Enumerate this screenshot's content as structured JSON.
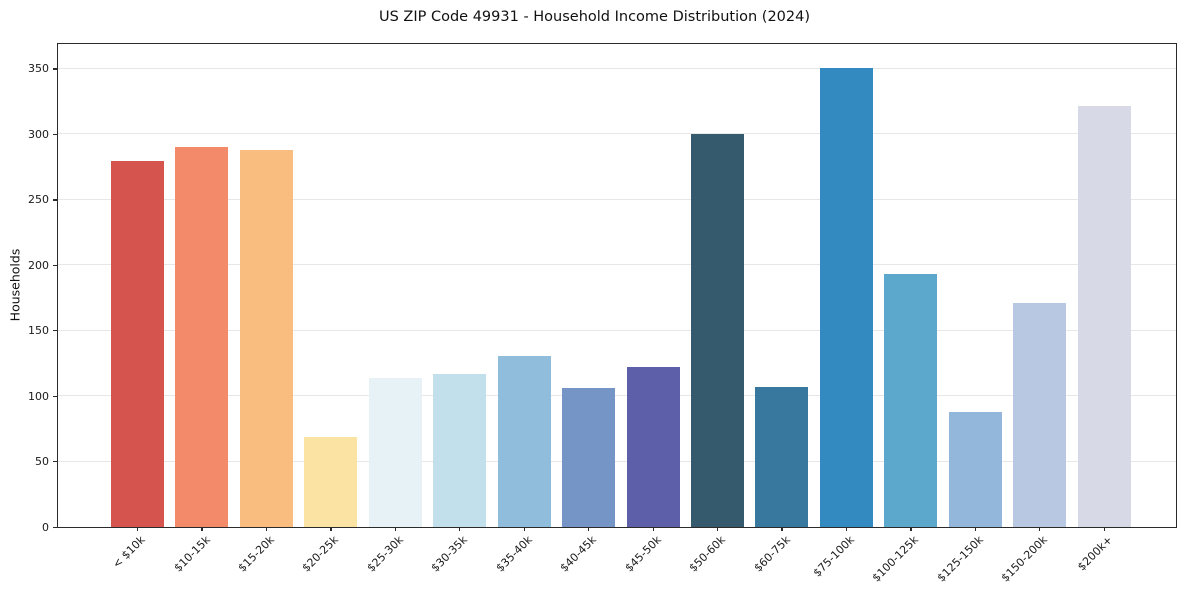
{
  "chart_data": {
    "type": "bar",
    "title": "US ZIP Code 49931 - Household Income Distribution (2024)",
    "xlabel": "",
    "ylabel": "Households",
    "categories": [
      "< $10k",
      "$10-15k",
      "$15-20k",
      "$20-25k",
      "$25-30k",
      "$30-35k",
      "$35-40k",
      "$40-45k",
      "$45-50k",
      "$50-60k",
      "$60-75k",
      "$75-100k",
      "$100-125k",
      "$125-150k",
      "$150-200k",
      "$200k+"
    ],
    "values": [
      280,
      290,
      288,
      69,
      114,
      117,
      131,
      106,
      122,
      300,
      107,
      351,
      193,
      88,
      171,
      322
    ],
    "bar_colors": [
      "#d6544e",
      "#f38a6a",
      "#fabd80",
      "#fbe3a3",
      "#e6f2f5",
      "#c1e0ec",
      "#90bddb",
      "#7495c6",
      "#5d5fa9",
      "#35596d",
      "#38789f",
      "#338ac1",
      "#5ca7cc",
      "#93b7db",
      "#b9c8e2",
      "#d8d9e7"
    ],
    "yticks": [
      0,
      50,
      100,
      150,
      200,
      250,
      300,
      350
    ],
    "ylim": [
      0,
      369
    ],
    "grid": "horizontal",
    "legend": "none",
    "x_tick_label_rotation": 45,
    "axis_color": "#2b2b2b",
    "grid_color": "#e7e7e7",
    "text_color": "#1a1a1a",
    "background": "#ffffff"
  }
}
